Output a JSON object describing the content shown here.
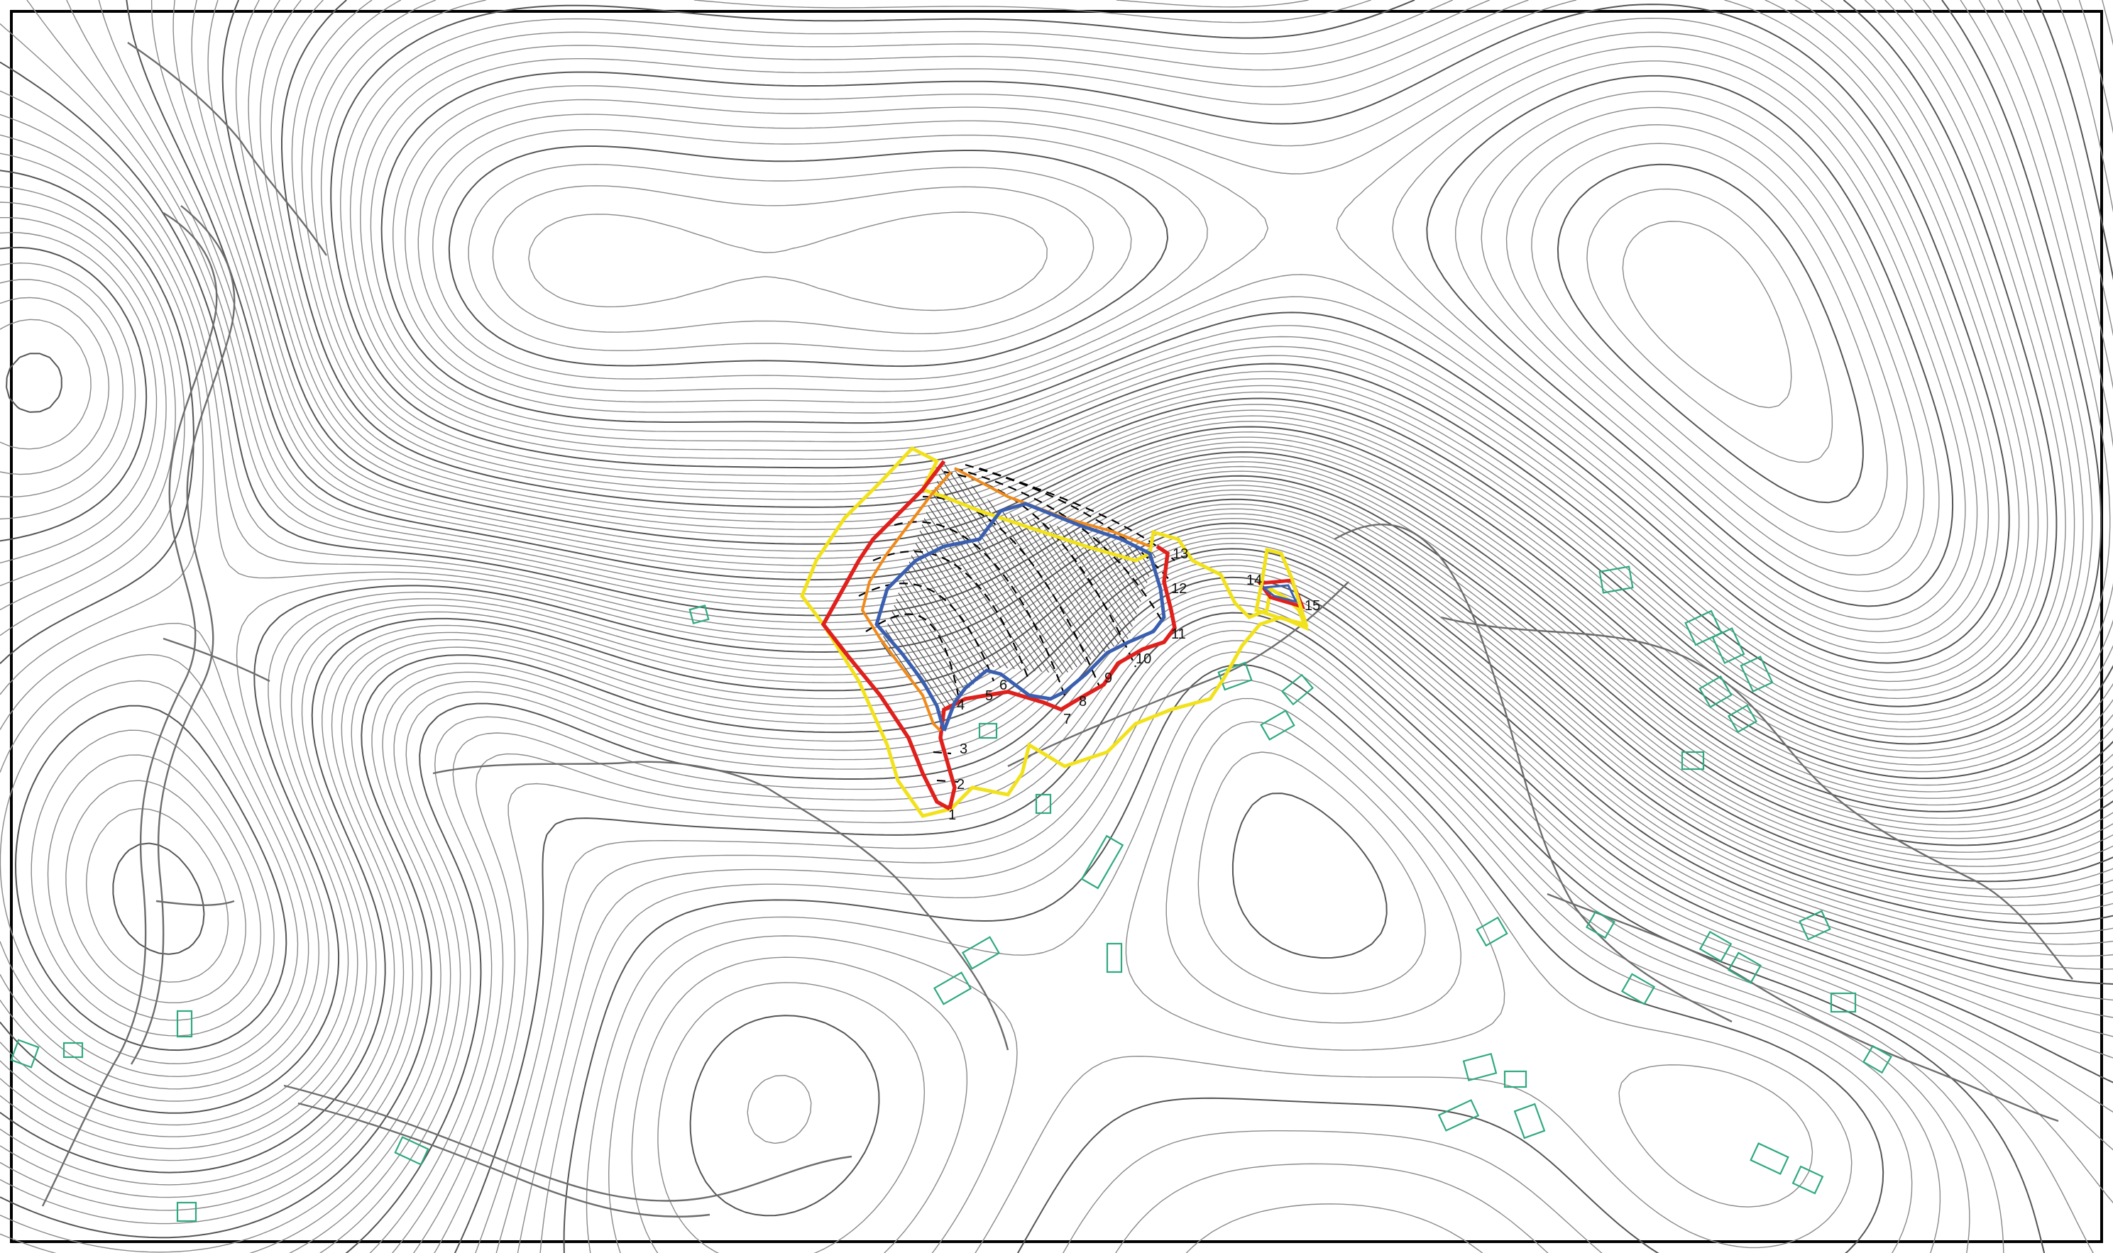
{
  "map": {
    "colors": {
      "background": "#ffffff",
      "contour": "#8a8a8a",
      "frame": "#000000",
      "building": "#2faa7e",
      "boundary_yellow": "#f2e21c",
      "boundary_red": "#e0201c",
      "boundary_orange": "#f08a1a",
      "boundary_blue": "#3a5fb0",
      "hatch": "#4a4a4a",
      "section_line": "#000000"
    },
    "point_labels": [
      "1",
      "2",
      "3",
      "4",
      "5",
      "6",
      "7",
      "8",
      "9",
      "10",
      "11",
      "12",
      "13",
      "14",
      "15"
    ]
  }
}
